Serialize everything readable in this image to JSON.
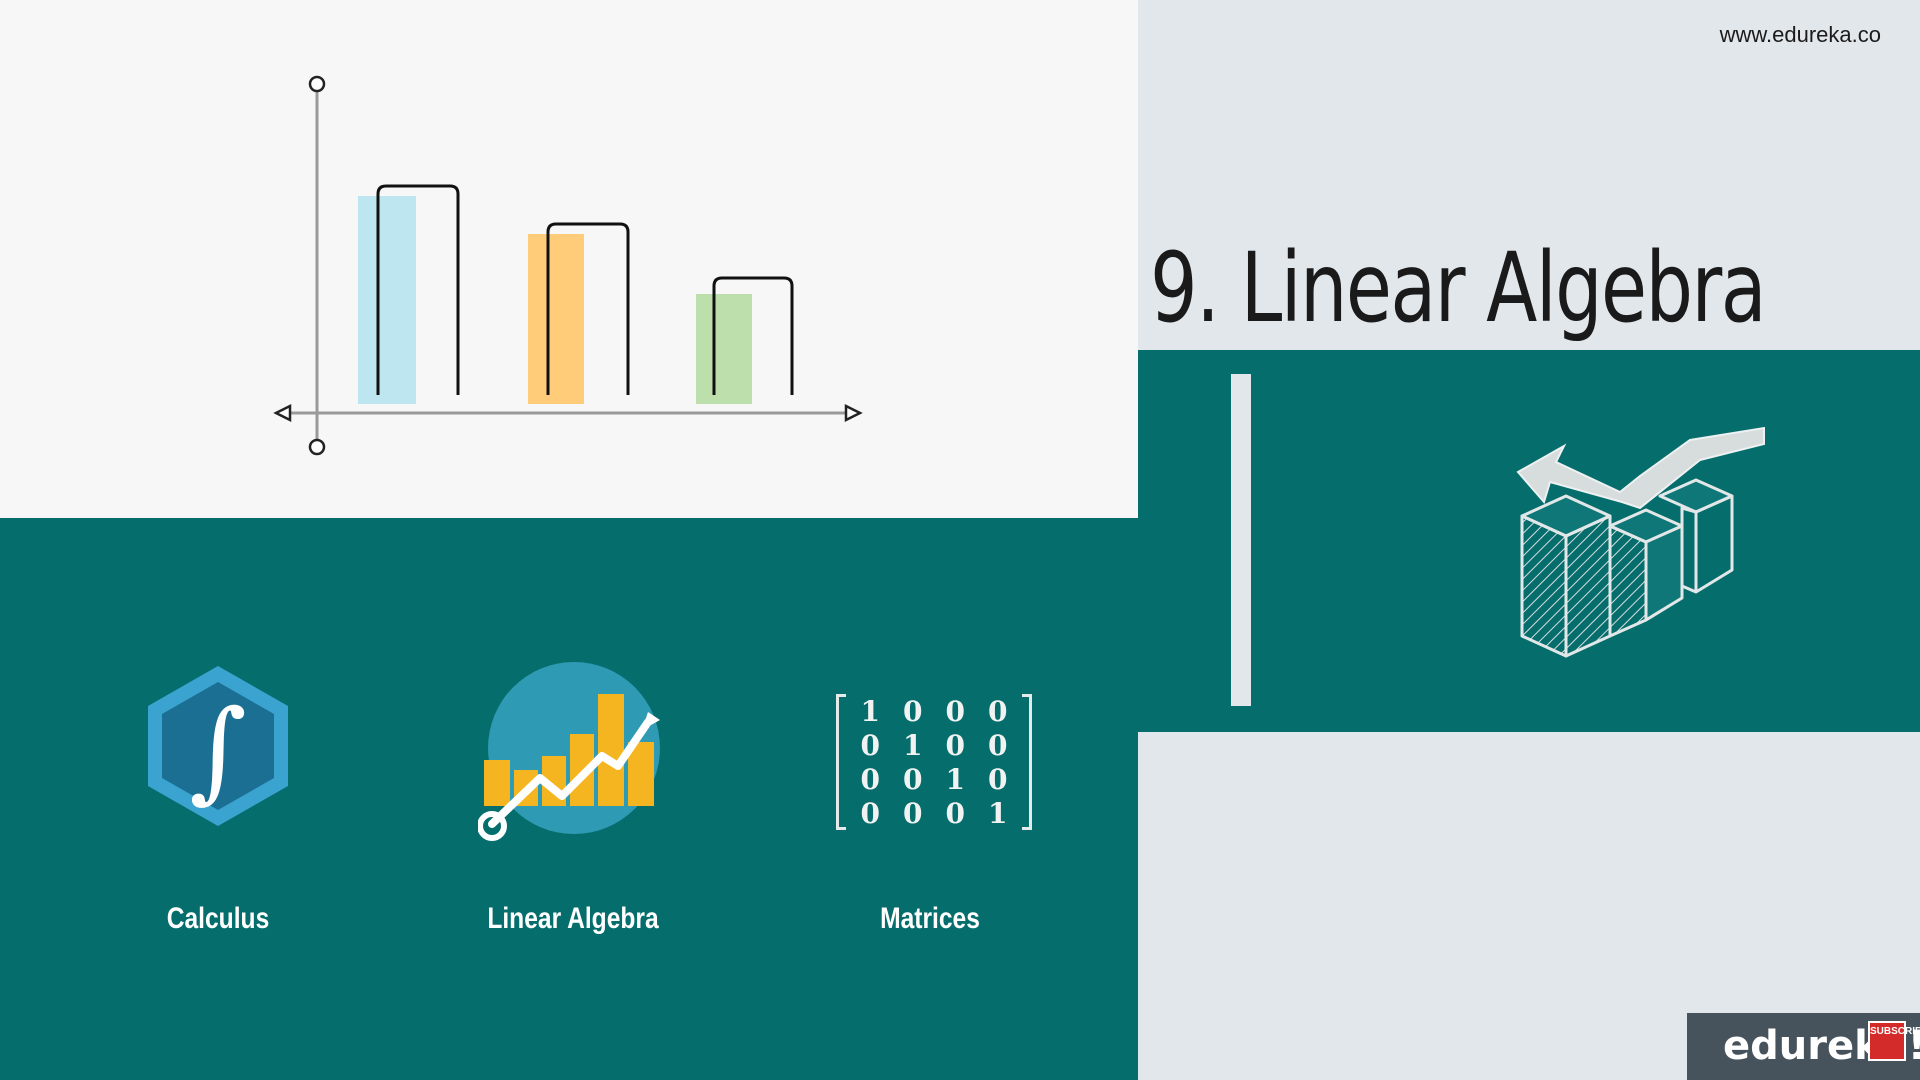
{
  "header": {
    "site_url": "www.edureka.co"
  },
  "slide": {
    "title": "9. Linear Algebra"
  },
  "topics": [
    {
      "label": "Calculus",
      "icon": "integral-hexagon-icon"
    },
    {
      "label": "Linear Algebra",
      "icon": "growth-chart-icon"
    },
    {
      "label": "Matrices",
      "icon": "identity-matrix-icon"
    }
  ],
  "matrix": {
    "rows": [
      [
        "1",
        "0",
        "0",
        "0"
      ],
      [
        "0",
        "1",
        "0",
        "0"
      ],
      [
        "0",
        "0",
        "1",
        "0"
      ],
      [
        "0",
        "0",
        "0",
        "1"
      ]
    ]
  },
  "illustration": {
    "icon": "isometric-blocks-arrow-icon"
  },
  "branding": {
    "logo": "edureka!",
    "subscribe": "SUBSCRIBE"
  },
  "colors": {
    "teal": "#066d6d",
    "light_gray": "#e2e7eb",
    "bar_blue": "#b7e3ee",
    "bar_orange": "#ffc86a",
    "bar_green": "#b6dca3"
  }
}
